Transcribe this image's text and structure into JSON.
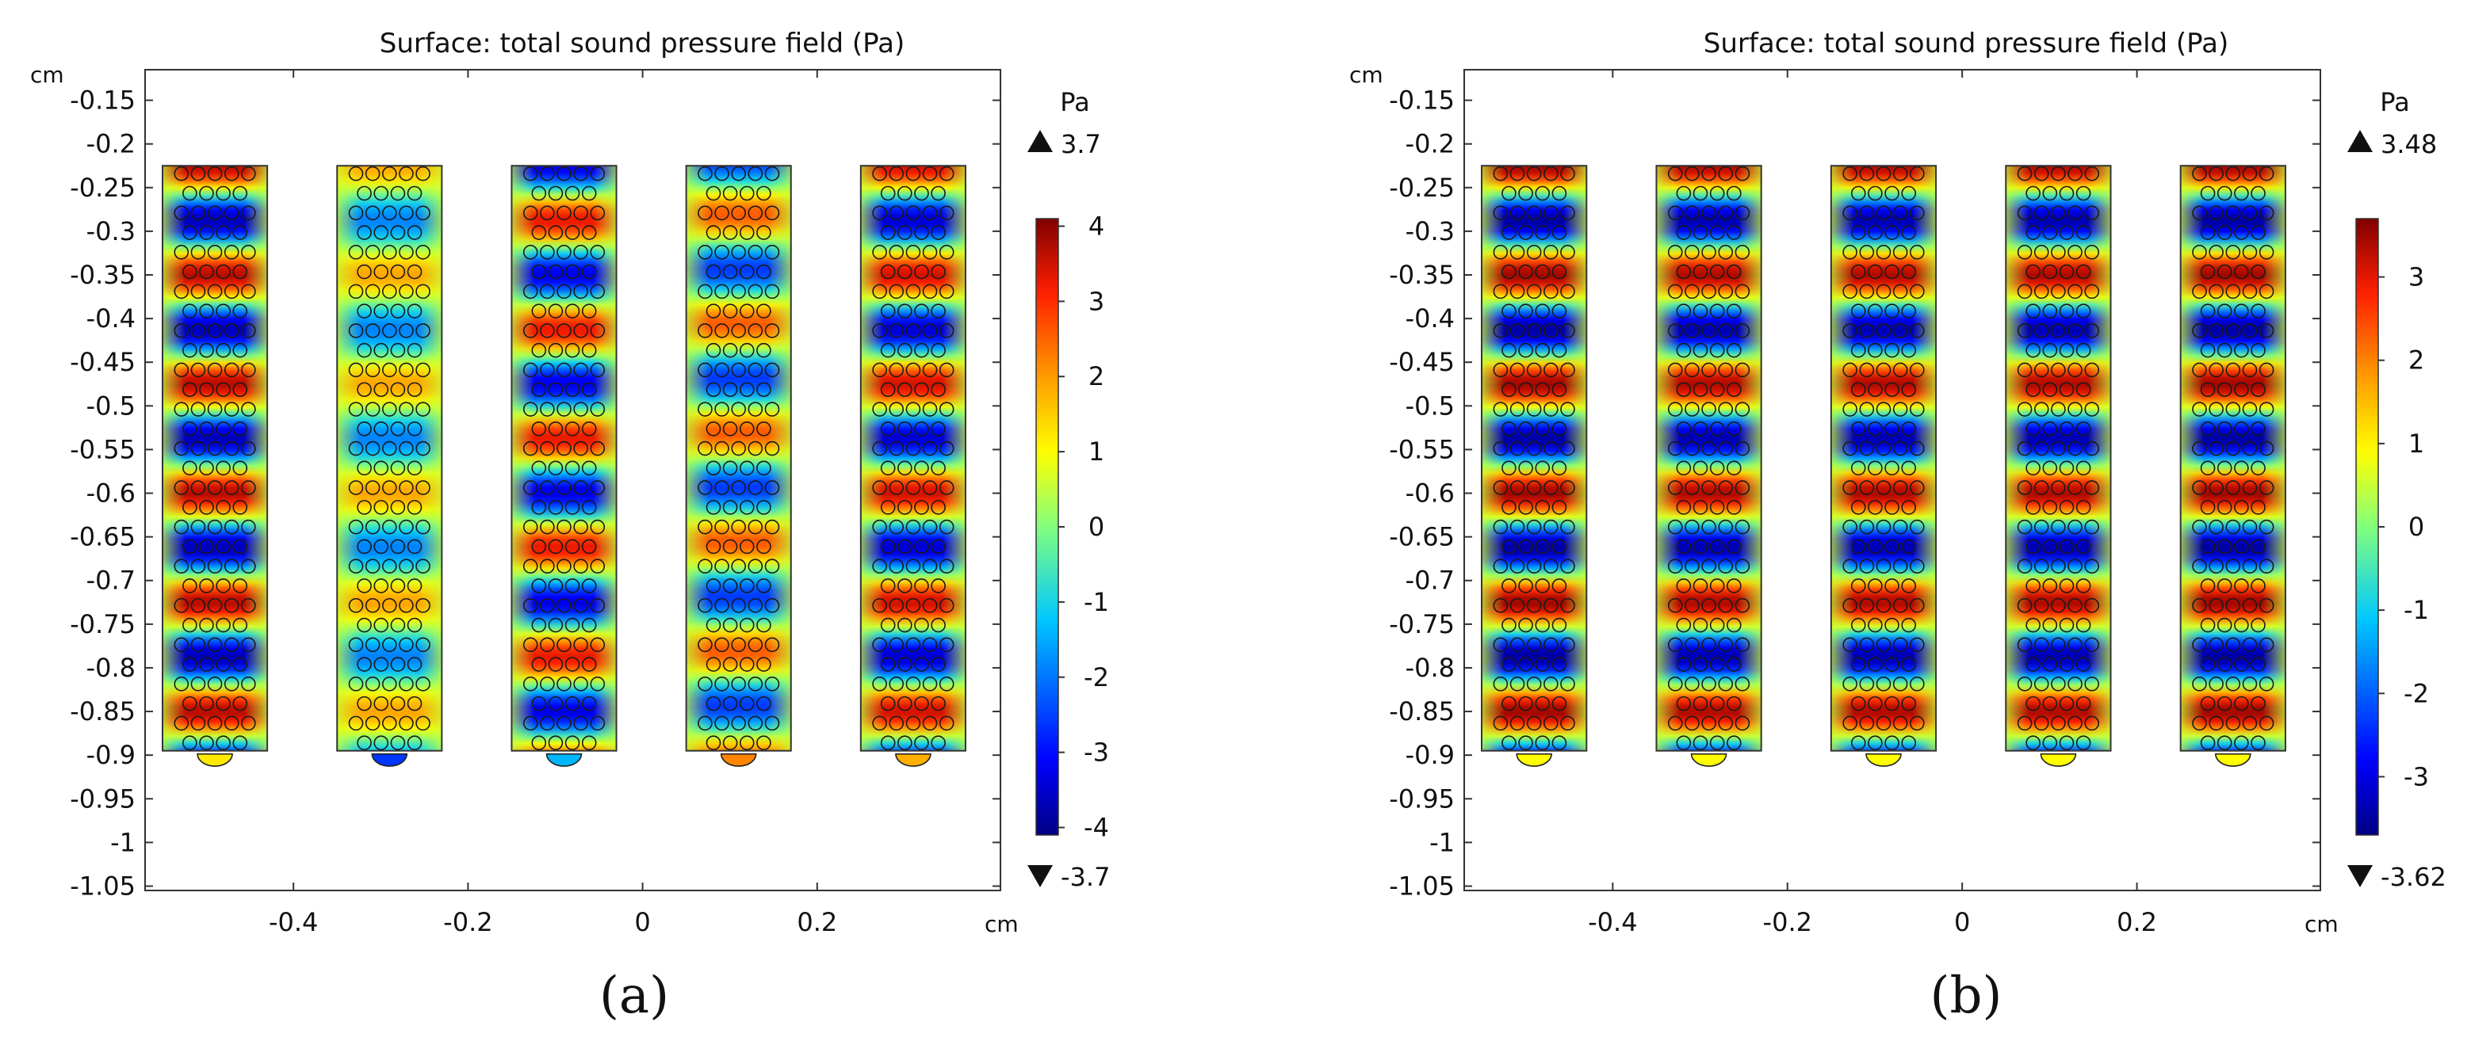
{
  "chart_data": [
    {
      "type": "heatmap",
      "caption": "(a)",
      "title": "Surface: total sound pressure field (Pa)",
      "x_unit": "cm",
      "y_unit": "cm",
      "xlim": [
        -0.57,
        0.41
      ],
      "ylim": [
        -1.055,
        -0.115
      ],
      "x_ticks": [
        -0.4,
        -0.2,
        0,
        0.2
      ],
      "x_tick_labels": [
        "-0.4",
        "-0.2",
        "0",
        "0.2"
      ],
      "y_ticks": [
        -0.15,
        -0.2,
        -0.25,
        -0.3,
        -0.35,
        -0.4,
        -0.45,
        -0.5,
        -0.55,
        -0.6,
        -0.65,
        -0.7,
        -0.75,
        -0.8,
        -0.85,
        -0.9,
        -0.95,
        -1,
        -1.05
      ],
      "y_tick_labels": [
        "-0.15",
        "-0.2",
        "-0.25",
        "-0.3",
        "-0.35",
        "-0.4",
        "-0.45",
        "-0.5",
        "-0.55",
        "-0.6",
        "-0.65",
        "-0.7",
        "-0.75",
        "-0.8",
        "-0.85",
        "-0.9",
        "-0.95",
        "-1",
        "-1.05"
      ],
      "colorbar": {
        "unit": "Pa",
        "max_label": "3.7",
        "min_label": "-3.7",
        "range": [
          -4.1,
          4.1
        ],
        "ticks": [
          4,
          3,
          2,
          1,
          0,
          -1,
          -2,
          -3,
          -4
        ],
        "tick_labels": [
          "4",
          "3",
          "2",
          "1",
          "0",
          "-1",
          "-2",
          "-3",
          "-4"
        ]
      },
      "channels": [
        {
          "x_center": -0.49,
          "phase_shift": 0.0,
          "amplitude": 3.7,
          "cap_value": 1.2
        },
        {
          "x_center": -0.29,
          "phase_shift": 0.0,
          "amplitude": 1.9,
          "cap_value": -2.6
        },
        {
          "x_center": -0.09,
          "phase_shift": 0.5,
          "amplitude": 3.3,
          "cap_value": -1.4
        },
        {
          "x_center": 0.11,
          "phase_shift": 0.45,
          "amplitude": 2.6,
          "cap_value": 2.2
        },
        {
          "x_center": 0.31,
          "phase_shift": 0.0,
          "amplitude": 3.5,
          "cap_value": 1.8
        }
      ],
      "channel_width": 0.12,
      "channel_top": -0.225,
      "channel_bottom": -0.895,
      "wave_period": 0.125
    },
    {
      "type": "heatmap",
      "caption": "(b)",
      "title": "Surface: total sound pressure field (Pa)",
      "x_unit": "cm",
      "y_unit": "cm",
      "xlim": [
        -0.57,
        0.41
      ],
      "ylim": [
        -1.055,
        -0.115
      ],
      "x_ticks": [
        -0.4,
        -0.2,
        0,
        0.2
      ],
      "x_tick_labels": [
        "-0.4",
        "-0.2",
        "0",
        "0.2"
      ],
      "y_ticks": [
        -0.15,
        -0.2,
        -0.25,
        -0.3,
        -0.35,
        -0.4,
        -0.45,
        -0.5,
        -0.55,
        -0.6,
        -0.65,
        -0.7,
        -0.75,
        -0.8,
        -0.85,
        -0.9,
        -0.95,
        -1,
        -1.05
      ],
      "y_tick_labels": [
        "-0.15",
        "-0.2",
        "-0.25",
        "-0.3",
        "-0.35",
        "-0.4",
        "-0.45",
        "-0.5",
        "-0.55",
        "-0.6",
        "-0.65",
        "-0.7",
        "-0.75",
        "-0.8",
        "-0.85",
        "-0.9",
        "-0.95",
        "-1",
        "-1.05"
      ],
      "colorbar": {
        "unit": "Pa",
        "max_label": "3.48",
        "min_label": "-3.62",
        "range": [
          -3.7,
          3.7
        ],
        "ticks": [
          3,
          2,
          1,
          0,
          -1,
          -2,
          -3
        ],
        "tick_labels": [
          "3",
          "2",
          "1",
          "0",
          "-1",
          "-2",
          "-3"
        ]
      },
      "channels": [
        {
          "x_center": -0.49,
          "phase_shift": 0.0,
          "amplitude": 3.5,
          "cap_value": 0.9
        },
        {
          "x_center": -0.29,
          "phase_shift": 0.0,
          "amplitude": 3.4,
          "cap_value": 0.9
        },
        {
          "x_center": -0.09,
          "phase_shift": 0.0,
          "amplitude": 3.4,
          "cap_value": 0.9
        },
        {
          "x_center": 0.11,
          "phase_shift": 0.0,
          "amplitude": 3.4,
          "cap_value": 0.9
        },
        {
          "x_center": 0.31,
          "phase_shift": 0.0,
          "amplitude": 3.5,
          "cap_value": 0.9
        }
      ],
      "channel_width": 0.12,
      "channel_top": -0.225,
      "channel_bottom": -0.895,
      "wave_period": 0.125
    }
  ]
}
